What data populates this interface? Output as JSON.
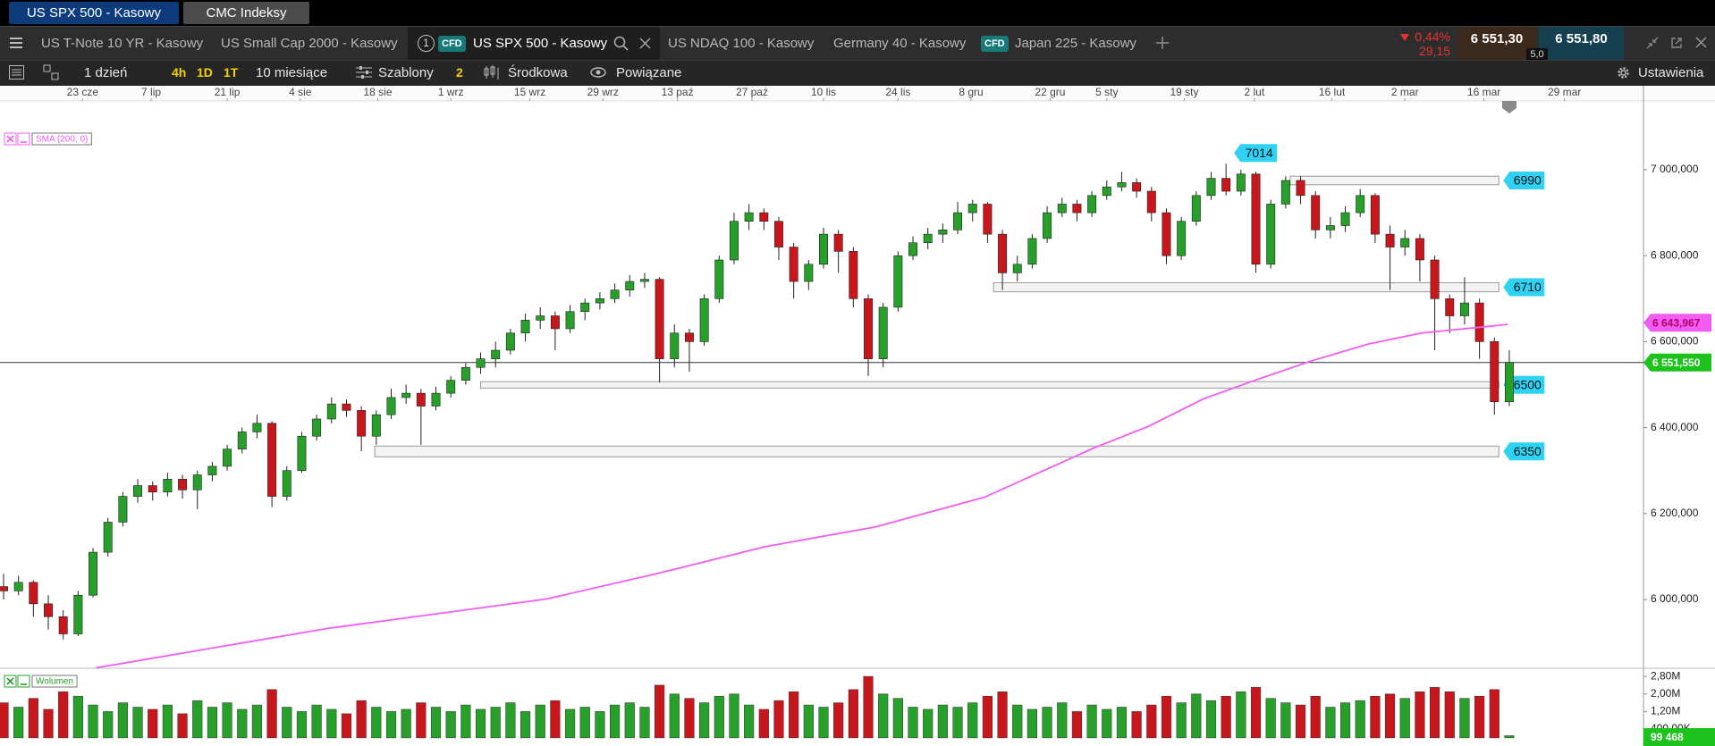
{
  "tabs": {
    "top": [
      "US SPX 500 - Kasowy",
      "CMC Indeksy"
    ],
    "instruments": [
      "US T-Note 10 YR - Kasowy",
      "US Small Cap 2000 - Kasowy"
    ],
    "active": {
      "number": "1",
      "badge": "CFD",
      "name": "US SPX 500 - Kasowy"
    },
    "after": [
      {
        "name": "US NDAQ 100 - Kasowy"
      },
      {
        "name": "Germany 40 - Kasowy"
      },
      {
        "badge": "CFD",
        "name": "Japan 225 - Kasowy"
      }
    ]
  },
  "quote": {
    "change_pct": "0,44%",
    "change": "29,15",
    "sell": "6 551,30",
    "spread": "5,0",
    "buy": "6 551,80"
  },
  "toolbar": {
    "period": "1 dzień",
    "quick": [
      "4h",
      "1D",
      "1T"
    ],
    "range": "10 miesiące",
    "templates": "Szablony",
    "count": "2",
    "mode": "Środkowa",
    "linked": "Powiązane",
    "settings": "Ustawienia"
  },
  "chart_data": {
    "type": "candlestick",
    "xlim": [
      -0.24,
      110
    ],
    "ylim": [
      5840,
      7160
    ],
    "yticks": [
      {
        "value": 6000,
        "label": "6 000,000"
      },
      {
        "value": 6200,
        "label": "6 200,000"
      },
      {
        "value": 6400,
        "label": "6 400,000"
      },
      {
        "value": 6600,
        "label": "6 600,000"
      },
      {
        "value": 6800,
        "label": "6 800,000"
      },
      {
        "value": 7000,
        "label": "7 000,000"
      }
    ],
    "xticks": [
      {
        "value": 5.3,
        "label": "23 cze"
      },
      {
        "value": 9.9,
        "label": "7 lip"
      },
      {
        "value": 15.0,
        "label": "21 lip"
      },
      {
        "value": 19.9,
        "label": "4 sie"
      },
      {
        "value": 25.1,
        "label": "18 sie"
      },
      {
        "value": 30.0,
        "label": "1 wrz"
      },
      {
        "value": 35.3,
        "label": "15 wrz"
      },
      {
        "value": 40.2,
        "label": "29 wrz"
      },
      {
        "value": 45.2,
        "label": "13 paź"
      },
      {
        "value": 50.2,
        "label": "27 paź"
      },
      {
        "value": 55.0,
        "label": "10 lis"
      },
      {
        "value": 60.0,
        "label": "24 lis"
      },
      {
        "value": 64.9,
        "label": "8 gru"
      },
      {
        "value": 70.2,
        "label": "22 gru"
      },
      {
        "value": 74.0,
        "label": "5 sty"
      },
      {
        "value": 79.2,
        "label": "19 sty"
      },
      {
        "value": 83.9,
        "label": "2 lut"
      },
      {
        "value": 89.1,
        "label": "16 lut"
      },
      {
        "value": 94.0,
        "label": "2 mar"
      },
      {
        "value": 99.3,
        "label": "16 mar"
      },
      {
        "value": 104.7,
        "label": "29 mar"
      }
    ],
    "up_color": "#27a02a",
    "down_color": "#c8161d",
    "ohlc": [
      [
        6030,
        6060,
        6000,
        6020
      ],
      [
        6020,
        6055,
        6010,
        6040
      ],
      [
        6040,
        6045,
        5960,
        5990
      ],
      [
        5990,
        6010,
        5930,
        5960
      ],
      [
        5960,
        5975,
        5907,
        5920
      ],
      [
        5920,
        6020,
        5915,
        6010
      ],
      [
        6010,
        6120,
        6005,
        6110
      ],
      [
        6110,
        6190,
        6100,
        6180
      ],
      [
        6180,
        6250,
        6170,
        6240
      ],
      [
        6240,
        6280,
        6225,
        6265
      ],
      [
        6265,
        6275,
        6230,
        6250
      ],
      [
        6250,
        6295,
        6240,
        6280
      ],
      [
        6280,
        6290,
        6235,
        6255
      ],
      [
        6255,
        6300,
        6210,
        6290
      ],
      [
        6290,
        6320,
        6275,
        6310
      ],
      [
        6310,
        6360,
        6300,
        6350
      ],
      [
        6350,
        6400,
        6340,
        6390
      ],
      [
        6390,
        6430,
        6375,
        6410
      ],
      [
        6410,
        6415,
        6215,
        6240
      ],
      [
        6240,
        6310,
        6230,
        6300
      ],
      [
        6300,
        6390,
        6295,
        6380
      ],
      [
        6380,
        6430,
        6370,
        6420
      ],
      [
        6420,
        6470,
        6410,
        6455
      ],
      [
        6455,
        6465,
        6425,
        6440
      ],
      [
        6440,
        6450,
        6345,
        6380
      ],
      [
        6380,
        6440,
        6360,
        6430
      ],
      [
        6430,
        6490,
        6420,
        6470
      ],
      [
        6470,
        6500,
        6455,
        6480
      ],
      [
        6480,
        6490,
        6360,
        6450
      ],
      [
        6450,
        6495,
        6440,
        6480
      ],
      [
        6480,
        6520,
        6470,
        6510
      ],
      [
        6510,
        6550,
        6500,
        6540
      ],
      [
        6540,
        6575,
        6525,
        6560
      ],
      [
        6560,
        6600,
        6540,
        6580
      ],
      [
        6580,
        6630,
        6570,
        6620
      ],
      [
        6620,
        6665,
        6600,
        6650
      ],
      [
        6650,
        6680,
        6630,
        6660
      ],
      [
        6660,
        6670,
        6580,
        6630
      ],
      [
        6630,
        6685,
        6620,
        6670
      ],
      [
        6670,
        6700,
        6650,
        6690
      ],
      [
        6690,
        6715,
        6675,
        6700
      ],
      [
        6700,
        6735,
        6690,
        6720
      ],
      [
        6720,
        6755,
        6705,
        6740
      ],
      [
        6740,
        6760,
        6725,
        6745
      ],
      [
        6745,
        6750,
        6505,
        6560
      ],
      [
        6560,
        6640,
        6540,
        6620
      ],
      [
        6620,
        6630,
        6530,
        6600
      ],
      [
        6600,
        6710,
        6590,
        6700
      ],
      [
        6700,
        6800,
        6690,
        6790
      ],
      [
        6790,
        6900,
        6780,
        6880
      ],
      [
        6880,
        6920,
        6860,
        6900
      ],
      [
        6900,
        6910,
        6860,
        6880
      ],
      [
        6880,
        6890,
        6790,
        6820
      ],
      [
        6820,
        6830,
        6700,
        6740
      ],
      [
        6740,
        6790,
        6720,
        6780
      ],
      [
        6780,
        6865,
        6770,
        6850
      ],
      [
        6850,
        6860,
        6760,
        6810
      ],
      [
        6810,
        6820,
        6680,
        6700
      ],
      [
        6700,
        6710,
        6520,
        6560
      ],
      [
        6560,
        6690,
        6540,
        6680
      ],
      [
        6680,
        6810,
        6670,
        6800
      ],
      [
        6800,
        6845,
        6790,
        6830
      ],
      [
        6830,
        6865,
        6815,
        6850
      ],
      [
        6850,
        6875,
        6830,
        6860
      ],
      [
        6860,
        6925,
        6850,
        6900
      ],
      [
        6900,
        6930,
        6880,
        6920
      ],
      [
        6920,
        6925,
        6830,
        6850
      ],
      [
        6850,
        6860,
        6720,
        6760
      ],
      [
        6760,
        6800,
        6740,
        6780
      ],
      [
        6780,
        6850,
        6770,
        6840
      ],
      [
        6840,
        6915,
        6830,
        6900
      ],
      [
        6900,
        6935,
        6890,
        6920
      ],
      [
        6920,
        6930,
        6880,
        6900
      ],
      [
        6900,
        6950,
        6890,
        6940
      ],
      [
        6940,
        6975,
        6930,
        6960
      ],
      [
        6960,
        6995,
        6950,
        6970
      ],
      [
        6970,
        6980,
        6935,
        6950
      ],
      [
        6950,
        6960,
        6880,
        6900
      ],
      [
        6900,
        6910,
        6780,
        6800
      ],
      [
        6800,
        6890,
        6790,
        6880
      ],
      [
        6880,
        6950,
        6870,
        6940
      ],
      [
        6940,
        6995,
        6930,
        6980
      ],
      [
        6980,
        7014,
        6940,
        6950
      ],
      [
        6950,
        7000,
        6940,
        6990
      ],
      [
        6990,
        6995,
        6760,
        6780
      ],
      [
        6780,
        6930,
        6770,
        6920
      ],
      [
        6920,
        6985,
        6910,
        6975
      ],
      [
        6975,
        6985,
        6920,
        6940
      ],
      [
        6940,
        6950,
        6840,
        6860
      ],
      [
        6860,
        6890,
        6840,
        6870
      ],
      [
        6870,
        6915,
        6855,
        6900
      ],
      [
        6900,
        6955,
        6890,
        6940
      ],
      [
        6940,
        6945,
        6830,
        6850
      ],
      [
        6850,
        6870,
        6720,
        6820
      ],
      [
        6820,
        6860,
        6800,
        6840
      ],
      [
        6840,
        6850,
        6740,
        6790
      ],
      [
        6790,
        6800,
        6580,
        6700
      ],
      [
        6700,
        6710,
        6620,
        6660
      ],
      [
        6660,
        6750,
        6640,
        6690
      ],
      [
        6690,
        6700,
        6560,
        6600
      ],
      [
        6600,
        6610,
        6430,
        6460
      ],
      [
        6460,
        6580,
        6450,
        6551.55
      ]
    ],
    "last_price": {
      "value": 6551.55,
      "label": "6 551,550",
      "color": "#1dc21d"
    },
    "sma": {
      "name": "SMA (200, 0)",
      "color": "#f25cf2",
      "x": [
        6.2,
        21.8,
        36.4,
        43.8,
        51.1,
        58.5,
        65.8,
        73.1,
        76.8,
        80.5,
        84.1,
        87.8,
        91.5,
        95.1,
        100.9
      ],
      "values": [
        5841,
        5933,
        6001,
        6060,
        6123,
        6169,
        6238,
        6352,
        6403,
        6467,
        6512,
        6556,
        6594,
        6620,
        6640
      ],
      "last": {
        "value": 6643.967,
        "label": "6 643,967"
      }
    },
    "zones": [
      {
        "label": 6990,
        "high": 6985,
        "low": 6965,
        "start": 86.3,
        "end": 100.3
      },
      {
        "label": 6710,
        "high": 6737,
        "low": 6716,
        "start": 66.4,
        "end": 100.3
      },
      {
        "label": 6500,
        "high": 6507,
        "low": 6492,
        "start": 32.0,
        "end": 100.3
      },
      {
        "label": 6350,
        "high": 6357,
        "low": 6332,
        "start": 24.9,
        "end": 100.3
      }
    ],
    "zone_color": "#2fd2f2",
    "peak": {
      "value": 7014,
      "x": 82
    },
    "volume": {
      "name": "Wolumen",
      "ylim": [
        -0.37,
        3.17
      ],
      "yticks": [
        {
          "value": 0.4,
          "label": "400,00K"
        },
        {
          "value": 1.2,
          "label": "1,20M"
        },
        {
          "value": 2.0,
          "label": "2,00M"
        },
        {
          "value": 2.8,
          "label": "2,80M"
        }
      ],
      "values": [
        1.6,
        1.4,
        1.8,
        1.3,
        2.1,
        1.9,
        1.5,
        1.2,
        1.6,
        1.4,
        1.3,
        1.5,
        1.1,
        1.7,
        1.4,
        1.6,
        1.3,
        1.5,
        2.2,
        1.4,
        1.2,
        1.5,
        1.3,
        1.1,
        1.7,
        1.4,
        1.2,
        1.3,
        1.6,
        1.4,
        1.2,
        1.5,
        1.3,
        1.4,
        1.6,
        1.2,
        1.5,
        1.7,
        1.3,
        1.4,
        1.2,
        1.5,
        1.6,
        1.4,
        2.4,
        2.0,
        1.8,
        1.6,
        1.9,
        2.0,
        1.5,
        1.3,
        1.7,
        2.1,
        1.5,
        1.4,
        1.6,
        2.2,
        2.8,
        2.0,
        1.8,
        1.4,
        1.3,
        1.5,
        1.4,
        1.6,
        1.9,
        2.1,
        1.5,
        1.3,
        1.4,
        1.6,
        1.2,
        1.5,
        1.3,
        1.4,
        1.2,
        1.5,
        1.9,
        1.6,
        2.0,
        1.7,
        1.9,
        2.1,
        2.3,
        1.8,
        1.6,
        1.5,
        1.9,
        1.4,
        1.6,
        1.7,
        1.9,
        2.0,
        1.8,
        2.1,
        2.3,
        2.1,
        1.8,
        1.9,
        2.2,
        0.099468
      ],
      "last": {
        "value": 0.099468,
        "label": "99 468"
      }
    }
  }
}
